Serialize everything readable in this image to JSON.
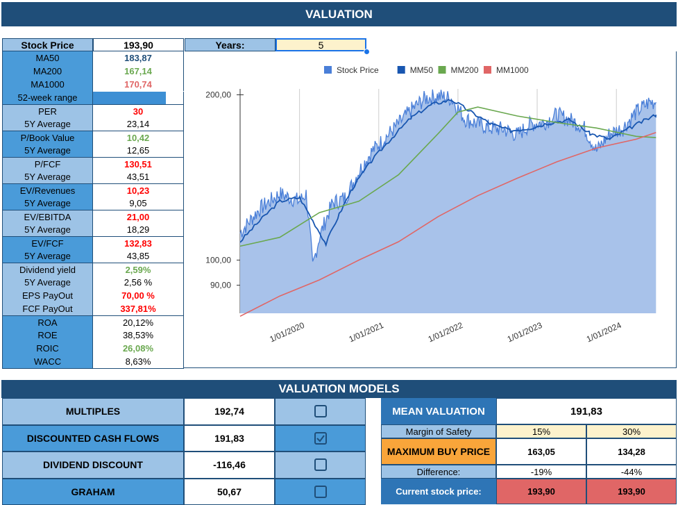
{
  "header": {
    "title": "VALUATION"
  },
  "stock_price": {
    "label": "Stock Price",
    "value": "193,90"
  },
  "years": {
    "label": "Years:",
    "value": "5"
  },
  "metrics": [
    {
      "label": "MA50",
      "value": "183,87",
      "color": "#1f4e79"
    },
    {
      "label": "MA200",
      "value": "167,14",
      "color": "#6aa84f"
    },
    {
      "label": "MA1000",
      "value": "170,74",
      "color": "#e06666"
    },
    {
      "label": "52-week range",
      "value": "",
      "color": "#000000"
    },
    {
      "label": "PER",
      "value": "30",
      "color": "#ff0000"
    },
    {
      "label": "5Y Average",
      "value": "23,14",
      "color": "#000000"
    },
    {
      "label": "P/Book Value",
      "value": "10,42",
      "color": "#6aa84f"
    },
    {
      "label": "5Y Average",
      "value": "12,65",
      "color": "#000000"
    },
    {
      "label": "P/FCF",
      "value": "130,51",
      "color": "#ff0000"
    },
    {
      "label": "5Y Average",
      "value": "43,51",
      "color": "#000000"
    },
    {
      "label": "EV/Revenues",
      "value": "10,23",
      "color": "#ff0000"
    },
    {
      "label": "5Y Average",
      "value": "9,05",
      "color": "#000000"
    },
    {
      "label": "EV/EBITDA",
      "value": "21,00",
      "color": "#ff0000"
    },
    {
      "label": "5Y Average",
      "value": "18,29",
      "color": "#000000"
    },
    {
      "label": "EV/FCF",
      "value": "132,83",
      "color": "#ff0000"
    },
    {
      "label": "5Y Average",
      "value": "43,85",
      "color": "#000000"
    },
    {
      "label": "Dividend yield",
      "value": "2,59%",
      "color": "#6aa84f"
    },
    {
      "label": "5Y Average",
      "value": "2,56 %",
      "color": "#000000"
    },
    {
      "label": "EPS PayOut",
      "value": "70,00 %",
      "color": "#ff0000"
    },
    {
      "label": "FCF PayOut",
      "value": "337,81%",
      "color": "#ff0000"
    },
    {
      "label": "ROA",
      "value": "20,12%",
      "color": "#000000"
    },
    {
      "label": "ROE",
      "value": "38,53%",
      "color": "#000000"
    },
    {
      "label": "ROIC",
      "value": "26,08%",
      "color": "#6aa84f"
    },
    {
      "label": "WACC",
      "value": "8,63%",
      "color": "#000000"
    }
  ],
  "chart_data": {
    "type": "area",
    "legend_position": "top",
    "x_tick_labels": [
      "1/01/2020",
      "1/01/2021",
      "1/01/2022",
      "1/01/2023",
      "1/01/2024"
    ],
    "y_tick_labels": [
      "200,00",
      "100,00",
      "90,00"
    ],
    "y_scale": "log",
    "ylim": [
      80,
      205
    ],
    "series": [
      {
        "name": "Stock Price",
        "color": "#4a7fd8",
        "points": [
          [
            "2019-04",
            112
          ],
          [
            "2019-07",
            124
          ],
          [
            "2019-10",
            132
          ],
          [
            "2020-01",
            128
          ],
          [
            "2020-02",
            132
          ],
          [
            "2020-03",
            97
          ],
          [
            "2020-04",
            110
          ],
          [
            "2020-06",
            127
          ],
          [
            "2020-08",
            130
          ],
          [
            "2020-10",
            145
          ],
          [
            "2020-12",
            158
          ],
          [
            "2021-02",
            167
          ],
          [
            "2021-04",
            177
          ],
          [
            "2021-06",
            188
          ],
          [
            "2021-08",
            197
          ],
          [
            "2021-10",
            199
          ],
          [
            "2021-12",
            197
          ],
          [
            "2022-02",
            181
          ],
          [
            "2022-04",
            177
          ],
          [
            "2022-06",
            174
          ],
          [
            "2022-08",
            173
          ],
          [
            "2022-10",
            169
          ],
          [
            "2022-12",
            177
          ],
          [
            "2023-02",
            178
          ],
          [
            "2023-04",
            184
          ],
          [
            "2023-06",
            180
          ],
          [
            "2023-08",
            175
          ],
          [
            "2023-10",
            158
          ],
          [
            "2023-12",
            170
          ],
          [
            "2024-02",
            174
          ],
          [
            "2024-04",
            186
          ],
          [
            "2024-06",
            194
          ],
          [
            "2024-07",
            193.9
          ]
        ]
      },
      {
        "name": "MM50",
        "color": "#1856b0",
        "points": [
          [
            "2019-04",
            108
          ],
          [
            "2019-07",
            118
          ],
          [
            "2019-10",
            128
          ],
          [
            "2020-01",
            130
          ],
          [
            "2020-03",
            118
          ],
          [
            "2020-05",
            107
          ],
          [
            "2020-07",
            121
          ],
          [
            "2020-09",
            135
          ],
          [
            "2020-12",
            152
          ],
          [
            "2021-03",
            167
          ],
          [
            "2021-06",
            182
          ],
          [
            "2021-09",
            192
          ],
          [
            "2021-12",
            196
          ],
          [
            "2022-03",
            186
          ],
          [
            "2022-06",
            177
          ],
          [
            "2022-09",
            172
          ],
          [
            "2022-12",
            174
          ],
          [
            "2023-03",
            178
          ],
          [
            "2023-06",
            180
          ],
          [
            "2023-09",
            170
          ],
          [
            "2023-12",
            166
          ],
          [
            "2024-03",
            174
          ],
          [
            "2024-07",
            183.87
          ]
        ]
      },
      {
        "name": "MM200",
        "color": "#6aa84f",
        "points": [
          [
            "2019-04",
            106
          ],
          [
            "2019-10",
            110
          ],
          [
            "2020-04",
            122
          ],
          [
            "2020-10",
            128
          ],
          [
            "2021-04",
            143
          ],
          [
            "2021-10",
            170
          ],
          [
            "2022-01",
            186
          ],
          [
            "2022-04",
            190
          ],
          [
            "2022-10",
            183
          ],
          [
            "2023-04",
            178
          ],
          [
            "2023-10",
            174
          ],
          [
            "2024-04",
            168
          ],
          [
            "2024-07",
            167.14
          ]
        ]
      },
      {
        "name": "MM1000",
        "color": "#e06666",
        "points": [
          [
            "2019-04",
            79
          ],
          [
            "2019-10",
            86
          ],
          [
            "2020-04",
            92
          ],
          [
            "2020-10",
            100
          ],
          [
            "2021-04",
            108
          ],
          [
            "2021-10",
            120
          ],
          [
            "2022-04",
            131
          ],
          [
            "2022-10",
            141
          ],
          [
            "2023-04",
            151
          ],
          [
            "2023-10",
            160
          ],
          [
            "2024-04",
            166
          ],
          [
            "2024-07",
            170.74
          ]
        ]
      }
    ]
  },
  "models": {
    "title": "VALUATION MODELS",
    "rows": [
      {
        "label": "MULTIPLES",
        "value": "192,74",
        "checked": false
      },
      {
        "label": "DISCOUNTED CASH FLOWS",
        "value": "191,83",
        "checked": true
      },
      {
        "label": "DIVIDEND DISCOUNT",
        "value": "-116,46",
        "checked": false
      },
      {
        "label": "GRAHAM",
        "value": "50,67",
        "checked": false
      }
    ],
    "mean_label": "MEAN VALUATION",
    "mean_value": "191,83",
    "mos_label": "Margin of Safety",
    "mos_values": [
      "15%",
      "30%"
    ],
    "max_label": "MAXIMUM BUY PRICE",
    "max_values": [
      "163,05",
      "134,28"
    ],
    "diff_label": "Difference:",
    "diff_values": [
      "-19%",
      "-44%"
    ],
    "current_label": "Current stock price:",
    "current_values": [
      "193,90",
      "193,90"
    ]
  }
}
